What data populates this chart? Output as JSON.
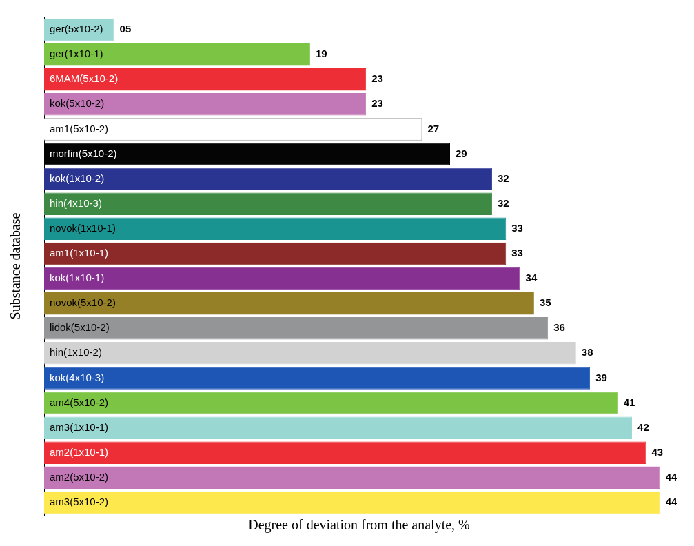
{
  "chart_data": {
    "type": "bar",
    "orientation": "horizontal",
    "xlabel": "Degree of deviation from the analyte, %",
    "ylabel": "Substance database",
    "categories": [
      "ger(5x10-2)",
      "ger(1x10-1)",
      "6MAM(5x10-2)",
      "kok(5x10-2)",
      "am1(5x10-2)",
      "morfin(5x10-2)",
      "kok(1x10-2)",
      "hin(4x10-3)",
      "novok(1x10-1)",
      "am1(1x10-1)",
      "kok(1x10-1)",
      "novok(5x10-2)",
      "lidok(5x10-2)",
      "hin(1x10-2)",
      "kok(4x10-3)",
      "am4(5x10-2)",
      "am3(1x10-1)",
      "am2(1x10-1)",
      "am2(5x10-2)",
      "am3(5x10-2)"
    ],
    "values": [
      5,
      19,
      23,
      23,
      27,
      29,
      32,
      32,
      33,
      33,
      34,
      35,
      36,
      38,
      39,
      41,
      42,
      43,
      44,
      44
    ],
    "colors": [
      "#99d8d2",
      "#7cc444",
      "#ee2e36",
      "#c278b6",
      "#ffffff",
      "#050505",
      "#2a3592",
      "#3e8a44",
      "#1a9490",
      "#8c2a2a",
      "#863092",
      "#958028",
      "#939597",
      "#d2d2d2",
      "#1e56b6",
      "#7cc444",
      "#99d8d2",
      "#ee2e36",
      "#c278b6",
      "#fde84e"
    ],
    "value_labels": [
      "05",
      "19",
      "23",
      "23",
      "27",
      "29",
      "32",
      "32",
      "33",
      "33",
      "34",
      "35",
      "36",
      "38",
      "39",
      "41",
      "42",
      "43",
      "44",
      "44"
    ],
    "tick_labels": "y",
    "legend": false
  }
}
